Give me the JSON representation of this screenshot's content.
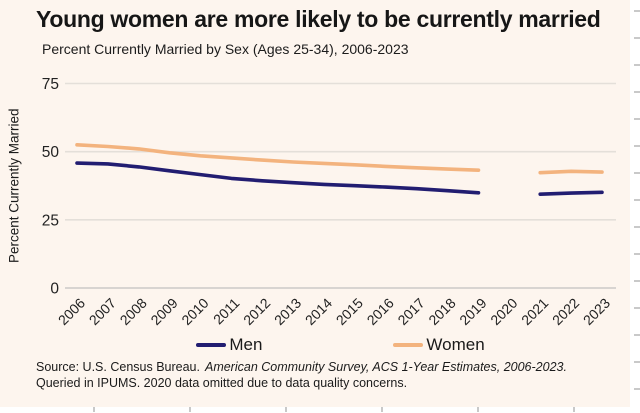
{
  "header": {
    "title": "Young women are more likely to be currently married",
    "subtitle": "Percent Currently Married by Sex (Ages 25-34), 2006-2023"
  },
  "chart_data": {
    "type": "line",
    "title": "Young women are more likely to be currently married",
    "subtitle": "Percent Currently Married by Sex (Ages 25-34), 2006-2023",
    "xlabel": "",
    "ylabel": "Percent Currently Married",
    "x": [
      2006,
      2007,
      2008,
      2009,
      2010,
      2011,
      2012,
      2013,
      2014,
      2015,
      2016,
      2017,
      2018,
      2019,
      2020,
      2021,
      2022,
      2023
    ],
    "series": [
      {
        "name": "Men",
        "color": "#221d71",
        "values": [
          45.8,
          45.5,
          44.4,
          43.0,
          41.6,
          40.2,
          39.3,
          38.6,
          38.0,
          37.5,
          37.0,
          36.4,
          35.7,
          34.9,
          null,
          34.4,
          34.8,
          35.1
        ]
      },
      {
        "name": "Women",
        "color": "#f3b37e",
        "values": [
          52.5,
          51.9,
          51.0,
          49.6,
          48.5,
          47.7,
          46.9,
          46.2,
          45.7,
          45.2,
          44.6,
          44.1,
          43.6,
          43.2,
          null,
          42.3,
          42.8,
          42.5
        ]
      }
    ],
    "ylim": [
      0,
      75
    ],
    "yticks": [
      0,
      25,
      50,
      75
    ],
    "grid": true,
    "legend_position": "bottom",
    "note": "Gap at 2020: data omitted"
  },
  "source": {
    "line1_plain": "Source: U.S. Census Bureau.",
    "line1_italic": "American Community Survey, ACS 1-Year Estimates, 2006-2023.",
    "line2": "Queried in IPUMS. 2020 data omitted due to data quality concerns."
  },
  "colors": {
    "background": "#fdf5ee",
    "men": "#221d71",
    "women": "#f3b37e",
    "gridline": "#e4dfd9",
    "baseline": "#cbc9c7",
    "text": "#1b1b1b"
  }
}
